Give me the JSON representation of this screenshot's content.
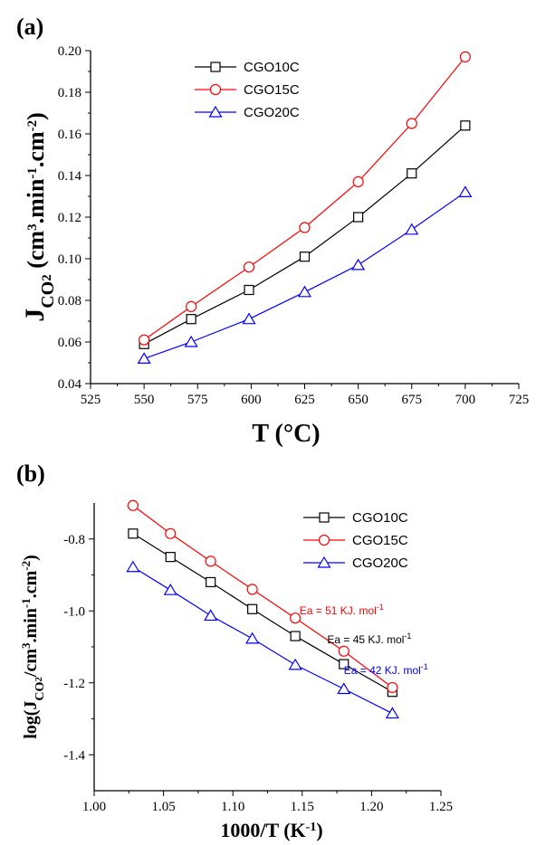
{
  "chart_data": [
    {
      "type": "line",
      "panel_label": "(a)",
      "xlabel": "T (°C)",
      "ylabel_parts": {
        "main": "J",
        "sub": "CO",
        "sub2": "2",
        "unit_pre": " (cm",
        "sup1": "3",
        "unit_mid": ".min",
        "sup2": "-1",
        "unit_mid2": ".cm",
        "sup3": "-2",
        "unit_post": ")"
      },
      "xlim": [
        525,
        725
      ],
      "ylim": [
        0.04,
        0.2
      ],
      "xticks": [
        "525",
        "550",
        "575",
        "600",
        "625",
        "650",
        "675",
        "700",
        "725"
      ],
      "yticks": [
        "0.04",
        "0.06",
        "0.08",
        "0.10",
        "0.12",
        "0.14",
        "0.16",
        "0.18",
        "0.20"
      ],
      "x": [
        550,
        572,
        599,
        625,
        650,
        675,
        700
      ],
      "series": [
        {
          "name": "CGO10C",
          "color": "#000000",
          "marker": "square",
          "values": [
            0.059,
            0.071,
            0.085,
            0.101,
            0.12,
            0.141,
            0.164
          ]
        },
        {
          "name": "CGO15C",
          "color": "#ff0000",
          "marker": "circle",
          "values": [
            0.061,
            0.077,
            0.096,
            0.115,
            0.137,
            0.165,
            0.197
          ]
        },
        {
          "name": "CGO20C",
          "color": "#0000ff",
          "marker": "triangle",
          "values": [
            0.052,
            0.06,
            0.071,
            0.084,
            0.097,
            0.114,
            0.132
          ]
        }
      ],
      "legend_position": "top-left"
    },
    {
      "type": "line",
      "panel_label": "(b)",
      "xlabel_parts": {
        "main": "1000/T (K",
        "sup": "-1",
        "post": ")"
      },
      "ylabel_parts": {
        "main": "log(J",
        "sub": "CO",
        "sub2": "2",
        "unit_pre": "/cm",
        "sup1": "3",
        "unit_mid": ".min",
        "sup2": "-1",
        "unit_mid2": ".cm",
        "sup3": "-2",
        "unit_post": ")"
      },
      "xlim": [
        1.0,
        1.25
      ],
      "ylim": [
        -1.5,
        -0.7
      ],
      "xticks": [
        "1.00",
        "1.05",
        "1.10",
        "1.15",
        "1.20",
        "1.25"
      ],
      "yticks": [
        "-0.8",
        "-1.0",
        "-1.2",
        "-1.4"
      ],
      "x": [
        1.028,
        1.055,
        1.084,
        1.114,
        1.145,
        1.18,
        1.215
      ],
      "series": [
        {
          "name": "CGO10C",
          "color": "#000000",
          "marker": "square",
          "values": [
            -0.785,
            -0.85,
            -0.92,
            -0.995,
            -1.07,
            -1.148,
            -1.225
          ]
        },
        {
          "name": "CGO15C",
          "color": "#ff0000",
          "marker": "circle",
          "values": [
            -0.707,
            -0.785,
            -0.862,
            -0.94,
            -1.02,
            -1.112,
            -1.213
          ]
        },
        {
          "name": "CGO20C",
          "color": "#0000ff",
          "marker": "triangle",
          "values": [
            -0.878,
            -0.942,
            -1.013,
            -1.077,
            -1.15,
            -1.217,
            -1.285
          ]
        }
      ],
      "legend_position": "top-right",
      "annotations": [
        {
          "prefix": "Ea = 51 KJ. mol",
          "sup": "-1",
          "color": "#ff0000",
          "x": 1.148,
          "y": -1.01
        },
        {
          "prefix": "Ea = 45 KJ. mol",
          "sup": "-1",
          "color": "#000000",
          "x": 1.168,
          "y": -1.09
        },
        {
          "prefix": "Ea = 42 KJ. mol",
          "sup": "-1",
          "color": "#0000ff",
          "x": 1.18,
          "y": -1.175
        }
      ]
    }
  ]
}
